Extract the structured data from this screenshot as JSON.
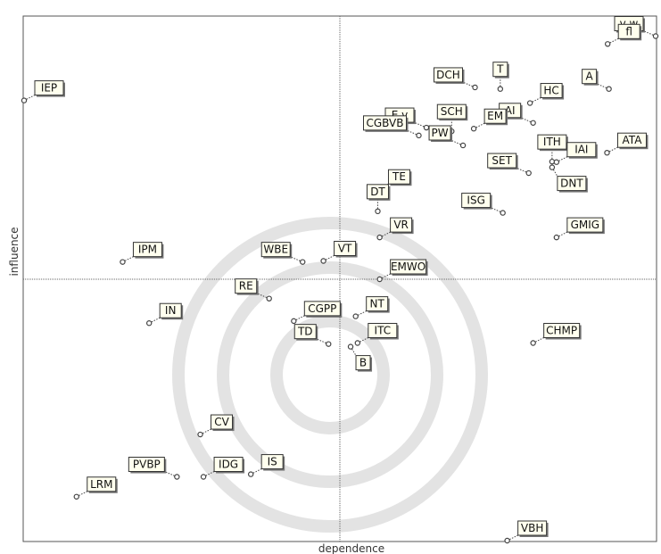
{
  "chart_data": {
    "type": "scatter",
    "xlabel": "dependence",
    "ylabel": "influence",
    "xlim": [
      0,
      100
    ],
    "ylim": [
      0,
      100
    ],
    "divider": {
      "x": 50,
      "y": 50
    },
    "grid": false,
    "points": [
      {
        "label": "v w",
        "x": 100.0,
        "y": 96.5,
        "label_side": "left"
      },
      {
        "label": "fl",
        "x": 92.4,
        "y": 95.0,
        "label_side": "right"
      },
      {
        "label": "IEP",
        "x": 0.0,
        "y": 84.2,
        "label_side": "right"
      },
      {
        "label": "DCH",
        "x": 71.4,
        "y": 86.7,
        "label_side": "left"
      },
      {
        "label": "T",
        "x": 75.4,
        "y": 86.4,
        "label_side": "up"
      },
      {
        "label": "HC",
        "x": 80.1,
        "y": 83.7,
        "label_side": "right"
      },
      {
        "label": "A",
        "x": 92.6,
        "y": 86.4,
        "label_side": "left"
      },
      {
        "label": "AI",
        "x": 80.6,
        "y": 79.9,
        "label_side": "left"
      },
      {
        "label": "SCH",
        "x": 67.7,
        "y": 78.3,
        "label_side": "up"
      },
      {
        "label": "E v",
        "x": 63.7,
        "y": 79.0,
        "label_side": "left"
      },
      {
        "label": "EM",
        "x": 71.2,
        "y": 78.8,
        "label_side": "right"
      },
      {
        "label": "PW",
        "x": 69.5,
        "y": 75.6,
        "label_side": "left"
      },
      {
        "label": "ATA",
        "x": 92.3,
        "y": 74.2,
        "label_side": "right"
      },
      {
        "label": "CGBVB",
        "x": 62.5,
        "y": 77.5,
        "label_side": "left"
      },
      {
        "label": "ITH",
        "x": 83.6,
        "y": 72.5,
        "label_side": "up"
      },
      {
        "label": "IAI",
        "x": 84.3,
        "y": 72.4,
        "label_side": "right"
      },
      {
        "label": "DNT",
        "x": 83.6,
        "y": 71.4,
        "label_side": "down"
      },
      {
        "label": "TE",
        "x": 56.0,
        "y": 67.2,
        "label_side": "right"
      },
      {
        "label": "SET",
        "x": 79.9,
        "y": 70.3,
        "label_side": "left"
      },
      {
        "label": "DT",
        "x": 56.0,
        "y": 63.0,
        "label_side": "up"
      },
      {
        "label": "ISG",
        "x": 75.8,
        "y": 62.7,
        "label_side": "left"
      },
      {
        "label": "GMIG",
        "x": 84.3,
        "y": 58.0,
        "label_side": "right"
      },
      {
        "label": "IPM",
        "x": 15.6,
        "y": 53.3,
        "label_side": "right"
      },
      {
        "label": "WBE",
        "x": 44.1,
        "y": 53.3,
        "label_side": "left"
      },
      {
        "label": "VT",
        "x": 47.4,
        "y": 53.5,
        "label_side": "right"
      },
      {
        "label": "VR",
        "x": 56.3,
        "y": 58.0,
        "label_side": "right"
      },
      {
        "label": "EMWO",
        "x": 56.3,
        "y": 50.0,
        "label_side": "right"
      },
      {
        "label": "IN",
        "x": 19.8,
        "y": 41.6,
        "label_side": "right"
      },
      {
        "label": "RE",
        "x": 38.8,
        "y": 46.3,
        "label_side": "left"
      },
      {
        "label": "CGPP",
        "x": 42.7,
        "y": 42.0,
        "label_side": "right"
      },
      {
        "label": "NT",
        "x": 52.5,
        "y": 42.9,
        "label_side": "right"
      },
      {
        "label": "ITC",
        "x": 52.8,
        "y": 37.8,
        "label_side": "right"
      },
      {
        "label": "TD",
        "x": 48.2,
        "y": 37.6,
        "label_side": "left"
      },
      {
        "label": "B",
        "x": 51.7,
        "y": 37.1,
        "label_side": "down"
      },
      {
        "label": "CHMP",
        "x": 80.6,
        "y": 37.8,
        "label_side": "right"
      },
      {
        "label": "CV",
        "x": 27.9,
        "y": 20.3,
        "label_side": "right"
      },
      {
        "label": "IS",
        "x": 35.9,
        "y": 12.7,
        "label_side": "right"
      },
      {
        "label": "LRM",
        "x": 8.3,
        "y": 8.4,
        "label_side": "right"
      },
      {
        "label": "PVBP",
        "x": 24.2,
        "y": 12.2,
        "label_side": "left"
      },
      {
        "label": "IDG",
        "x": 28.4,
        "y": 12.2,
        "label_side": "right"
      },
      {
        "label": "VBH",
        "x": 76.5,
        "y": 0.0,
        "label_side": "right"
      }
    ]
  }
}
